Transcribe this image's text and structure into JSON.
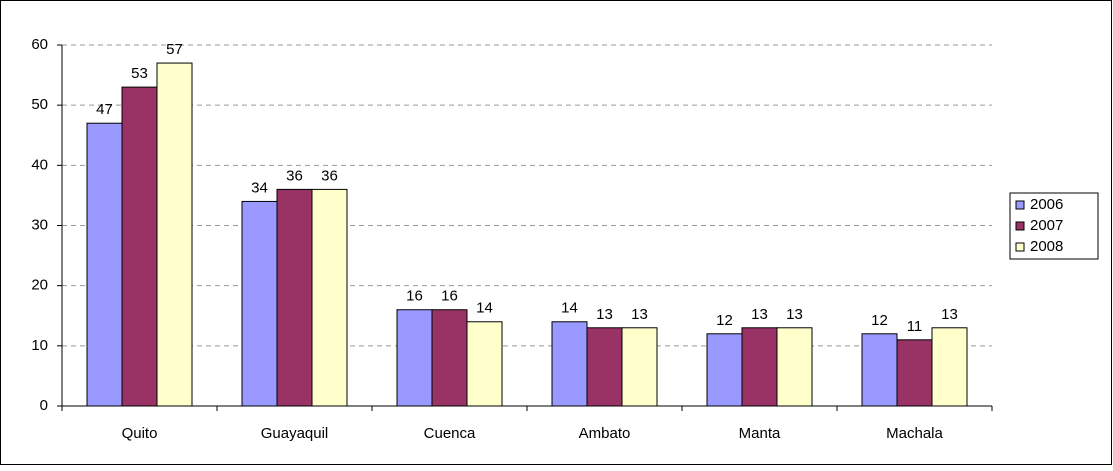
{
  "chart_data": {
    "type": "bar",
    "categories": [
      "Quito",
      "Guayaquil",
      "Cuenca",
      "Ambato",
      "Manta",
      "Machala"
    ],
    "series": [
      {
        "name": "2006",
        "color": "#9999ff",
        "values": [
          47,
          34,
          16,
          14,
          12,
          12
        ]
      },
      {
        "name": "2007",
        "color": "#993366",
        "values": [
          53,
          36,
          16,
          13,
          13,
          11
        ]
      },
      {
        "name": "2008",
        "color": "#ffffcc",
        "values": [
          57,
          36,
          14,
          13,
          13,
          13
        ]
      }
    ],
    "ylim": [
      0,
      60
    ],
    "yticks": [
      0,
      10,
      20,
      30,
      40,
      50,
      60
    ],
    "grid": true,
    "legend": "right"
  }
}
